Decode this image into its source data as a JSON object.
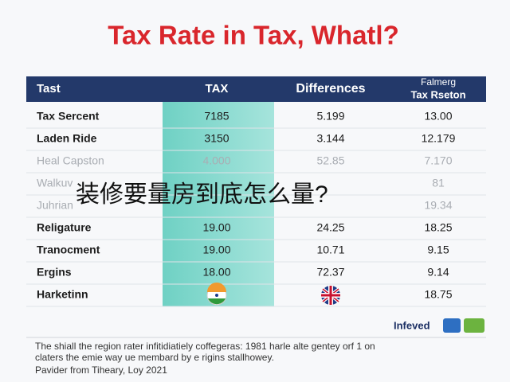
{
  "title": "Tax Rate in Tax, Whatl?",
  "table": {
    "header": [
      "Tast",
      "TAX",
      "Differences",
      {
        "lines": [
          "Falmerg",
          "Tax Rseton"
        ]
      }
    ],
    "rows": [
      {
        "label": "Tax Sercent",
        "tax": "7185",
        "diff": "5.199",
        "region": "13.00"
      },
      {
        "label": "Laden Ride",
        "tax": "3150",
        "diff": "3.144",
        "region": "12.179"
      },
      {
        "label": "Heal Capston",
        "tax": "4.000",
        "diff": "52.85",
        "region": "7.170",
        "faded": true
      },
      {
        "label": "Walkuv",
        "region": "81",
        "faded": true
      },
      {
        "label": "Juhrian",
        "region": "19.34",
        "faded": true
      },
      {
        "label": "Religature",
        "tax": "19.00",
        "diff": "24.25",
        "region": "18.25"
      },
      {
        "label": "Tranocment",
        "tax": "19.00",
        "diff": "10.71",
        "region": "9.15"
      },
      {
        "label": "Ergins",
        "tax": "18.00",
        "diff": "72.37",
        "region": "9.14"
      },
      {
        "label": "Harketinn",
        "region": "18.75"
      }
    ]
  },
  "overlay": "装修要量房到底怎么量?",
  "logo": "Infeved",
  "footer": [
    "The shiall the region rater infitidiatiely coffegeras: 1981 harle alte gentey orf 1 on",
    "claters the emie way ue membard by e rigins stallhowey.",
    "Pavider from Tiheary, Loy 2021"
  ]
}
